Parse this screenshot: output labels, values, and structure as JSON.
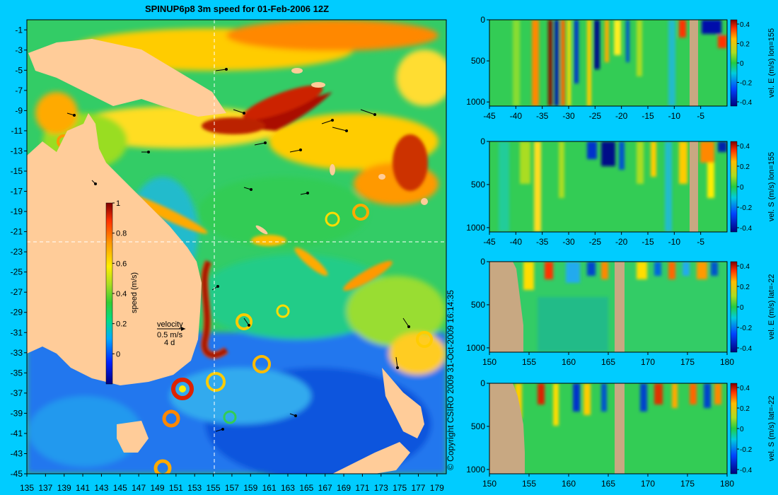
{
  "title": "SPINUP6p8 3m speed for 01-Feb-2006 12Z",
  "copyright": "© Copyright CSIRO 2009   31-Oct-2009 16:14:35",
  "colors": {
    "background": "#00ccff",
    "land": "#ffcc99",
    "section_land": "#c8a882",
    "grid_line": "#ffffff"
  },
  "chart_data": [
    {
      "type": "heatmap",
      "name": "map",
      "title": "SPINUP6p8 3m speed for 01-Feb-2006 12Z",
      "xlim": [
        135,
        180
      ],
      "ylim": [
        -45,
        0
      ],
      "x_ticks": [
        "135",
        "137",
        "139",
        "141",
        "143",
        "145",
        "147",
        "149",
        "151",
        "153",
        "155",
        "157",
        "159",
        "161",
        "163",
        "165",
        "167",
        "169",
        "171",
        "173",
        "175",
        "177",
        "179"
      ],
      "y_ticks": [
        "-1",
        "-3",
        "-5",
        "-7",
        "-9",
        "-11",
        "-13",
        "-15",
        "-17",
        "-19",
        "-21",
        "-23",
        "-25",
        "-27",
        "-29",
        "-31",
        "-33",
        "-35",
        "-37",
        "-39",
        "-41",
        "-43",
        "-45"
      ],
      "reference_lines": {
        "lon": 155,
        "lat": -22
      },
      "colorbar": {
        "label": "speed (m/s)",
        "ticks": [
          "1",
          "0.8",
          "0.6",
          "0.4",
          "0.2",
          "0"
        ],
        "range": [
          -0.2,
          1
        ]
      },
      "velocity_key": {
        "label": "velocity",
        "scale": "0.5 m/s",
        "duration": "4 d"
      }
    },
    {
      "type": "heatmap",
      "name": "section-1",
      "x_range": [
        -45,
        0
      ],
      "y_range": [
        1050,
        0
      ],
      "x_ticks": [
        "-45",
        "-40",
        "-35",
        "-30",
        "-25",
        "-20",
        "-15",
        "-10",
        "-5"
      ],
      "y_ticks": [
        "0",
        "500",
        "1000"
      ],
      "colorbar": {
        "label": "vel. E (m/s) lon=155",
        "ticks": [
          "0.4",
          "0.2",
          "0",
          "-0.2",
          "-0.4"
        ]
      }
    },
    {
      "type": "heatmap",
      "name": "section-2",
      "x_range": [
        -45,
        0
      ],
      "y_range": [
        1050,
        0
      ],
      "x_ticks": [
        "-45",
        "-40",
        "-35",
        "-30",
        "-25",
        "-20",
        "-15",
        "-10",
        "-5"
      ],
      "y_ticks": [
        "0",
        "500",
        "1000"
      ],
      "colorbar": {
        "label": "vel. S (m/s) lon=155",
        "ticks": [
          "0.4",
          "0.2",
          "0",
          "-0.2",
          "-0.4"
        ]
      }
    },
    {
      "type": "heatmap",
      "name": "section-3",
      "x_range": [
        150,
        180
      ],
      "y_range": [
        1050,
        0
      ],
      "x_ticks": [
        "150",
        "155",
        "160",
        "165",
        "170",
        "175",
        "180"
      ],
      "y_ticks": [
        "0",
        "500",
        "1000"
      ],
      "colorbar": {
        "label": "vel. E (m/s) lat=-22",
        "ticks": [
          "0.4",
          "0.2",
          "0",
          "-0.2",
          "-0.4"
        ]
      }
    },
    {
      "type": "heatmap",
      "name": "section-4",
      "x_range": [
        150,
        180
      ],
      "y_range": [
        1050,
        0
      ],
      "x_ticks": [
        "150",
        "155",
        "160",
        "165",
        "170",
        "175",
        "180"
      ],
      "y_ticks": [
        "0",
        "500",
        "1000"
      ],
      "colorbar": {
        "label": "vel. S (m/s) lat=-22",
        "ticks": [
          "0.4",
          "0.2",
          "0",
          "-0.2",
          "-0.4"
        ]
      }
    }
  ]
}
